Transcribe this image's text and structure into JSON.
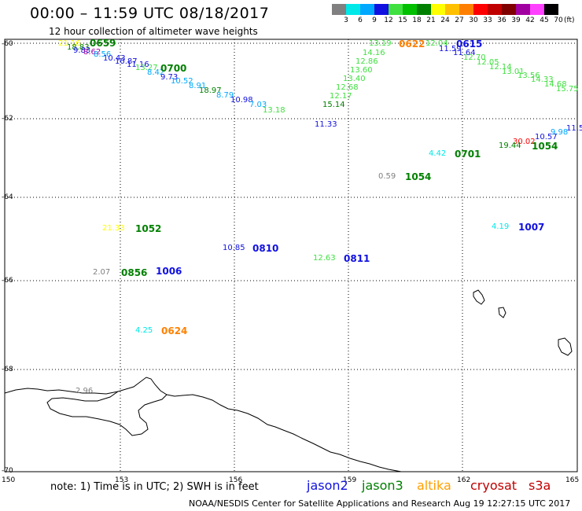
{
  "header": {
    "title": "00:00 – 11:59 UTC 08/18/2017",
    "subtitle": "12 hour collection of altimeter wave heights"
  },
  "colorbar": {
    "unit": "(ft)",
    "stops": [
      {
        "label": "3",
        "color": "#808080"
      },
      {
        "label": "6",
        "color": "#00e8e8"
      },
      {
        "label": "9",
        "color": "#00a8ff"
      },
      {
        "label": "12",
        "color": "#1010e0"
      },
      {
        "label": "15",
        "color": "#40e040"
      },
      {
        "label": "18",
        "color": "#00c000"
      },
      {
        "label": "21",
        "color": "#008000"
      },
      {
        "label": "24",
        "color": "#ffff00"
      },
      {
        "label": "27",
        "color": "#ffc000"
      },
      {
        "label": "30",
        "color": "#ff8000"
      },
      {
        "label": "33",
        "color": "#ff0000"
      },
      {
        "label": "36",
        "color": "#c00000"
      },
      {
        "label": "39",
        "color": "#800000"
      },
      {
        "label": "42",
        "color": "#a000a0"
      },
      {
        "label": "45",
        "color": "#ff40ff"
      },
      {
        "label": "70",
        "color": "#000000"
      }
    ]
  },
  "axes": {
    "lat_labels": [
      "-60",
      "-62",
      "-64",
      "-66",
      "-68",
      "-70"
    ],
    "lon_labels": [
      "150",
      "153",
      "156",
      "159",
      "162",
      "165"
    ]
  },
  "wave_labels": [
    {
      "text": "21.16",
      "color": "#ffff00"
    },
    {
      "text": "18.83",
      "color": "#008000"
    },
    {
      "text": "9.83",
      "color": "#1010e0"
    },
    {
      "text": "8.62",
      "color": "#a000a0"
    },
    {
      "text": "8.56",
      "color": "#00a8ff"
    },
    {
      "text": "10.43",
      "color": "#1010e0"
    },
    {
      "text": "10.87",
      "color": "#1010e0"
    },
    {
      "text": "11.16",
      "color": "#1010e0"
    },
    {
      "text": "13.27",
      "color": "#40e040"
    },
    {
      "text": "8.42",
      "color": "#00a8ff"
    },
    {
      "text": "9.73",
      "color": "#1010e0"
    },
    {
      "text": "10.52",
      "color": "#00a8ff"
    },
    {
      "text": "8.91",
      "color": "#00a8ff"
    },
    {
      "text": "18.97",
      "color": "#008000"
    },
    {
      "text": "8.79",
      "color": "#00a8ff"
    },
    {
      "text": "10.98",
      "color": "#1010e0"
    },
    {
      "text": "7.03",
      "color": "#00a8ff"
    },
    {
      "text": "13.18",
      "color": "#40e040"
    },
    {
      "text": "13.19",
      "color": "#40e040"
    },
    {
      "text": "14.16",
      "color": "#40e040"
    },
    {
      "text": "12.86",
      "color": "#40e040"
    },
    {
      "text": "13.60",
      "color": "#40e040"
    },
    {
      "text": "13.40",
      "color": "#40e040"
    },
    {
      "text": "12.68",
      "color": "#40e040"
    },
    {
      "text": "12.17",
      "color": "#40e040"
    },
    {
      "text": "15.14",
      "color": "#008000"
    },
    {
      "text": "11.33",
      "color": "#1010e0"
    },
    {
      "text": "12.04",
      "color": "#40e040"
    },
    {
      "text": "11.59",
      "color": "#1010e0"
    },
    {
      "text": "11.64",
      "color": "#1010e0"
    },
    {
      "text": "12.70",
      "color": "#40e040"
    },
    {
      "text": "12.05",
      "color": "#40e040"
    },
    {
      "text": "12.14",
      "color": "#40e040"
    },
    {
      "text": "13.01",
      "color": "#40e040"
    },
    {
      "text": "13.56",
      "color": "#40e040"
    },
    {
      "text": "14.33",
      "color": "#40e040"
    },
    {
      "text": "14.68",
      "color": "#40e040"
    },
    {
      "text": "15.75",
      "color": "#40e040"
    },
    {
      "text": "11.5",
      "color": "#1010e0"
    },
    {
      "text": "10.57",
      "color": "#1010e0"
    },
    {
      "text": "9.98",
      "color": "#00a8ff"
    },
    {
      "text": "30.02",
      "color": "#ff0000"
    },
    {
      "text": "19.44",
      "color": "#008000"
    },
    {
      "text": "4.42",
      "color": "#00e8e8"
    },
    {
      "text": "0.59",
      "color": "#808080"
    },
    {
      "text": "21.33",
      "color": "#ffff00"
    },
    {
      "text": "10.85",
      "color": "#1010e0"
    },
    {
      "text": "12.63",
      "color": "#40e040"
    },
    {
      "text": "2.07",
      "color": "#808080"
    },
    {
      "text": "4.19",
      "color": "#00e8e8"
    },
    {
      "text": "4.25",
      "color": "#00e8e8"
    },
    {
      "text": "2.96",
      "color": "#808080"
    }
  ],
  "time_labels": [
    {
      "text": "0659",
      "color": "#008000"
    },
    {
      "text": "0700",
      "color": "#008000"
    },
    {
      "text": "0622",
      "color": "#ff8000"
    },
    {
      "text": "0615",
      "color": "#1010e0"
    },
    {
      "text": "1054",
      "color": "#008000"
    },
    {
      "text": "0701",
      "color": "#008000"
    },
    {
      "text": "1054",
      "color": "#008000"
    },
    {
      "text": "1052",
      "color": "#008000"
    },
    {
      "text": "0810",
      "color": "#1010e0"
    },
    {
      "text": "0811",
      "color": "#1010e0"
    },
    {
      "text": "0856",
      "color": "#008000"
    },
    {
      "text": "1006",
      "color": "#1010e0"
    },
    {
      "text": "1007",
      "color": "#1010e0"
    },
    {
      "text": "0624",
      "color": "#ff8000"
    }
  ],
  "footer": {
    "note": "note: 1) Time is in UTC; 2) SWH is in feet",
    "satellites": [
      {
        "name": "jason2",
        "color": "#1010e0"
      },
      {
        "name": "jason3",
        "color": "#008000"
      },
      {
        "name": "altika",
        "color": "#ffa000"
      },
      {
        "name": "cryosat",
        "color": "#c00000"
      },
      {
        "name": "s3a",
        "color": "#c00000"
      }
    ],
    "credit": "NOAA/NESDIS Center for Satellite Applications and Research    Aug 19 12:27:15 UTC 2017"
  }
}
